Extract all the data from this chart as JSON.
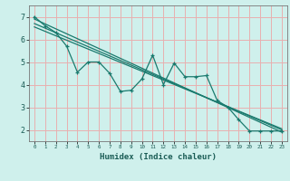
{
  "title": "",
  "xlabel": "Humidex (Indice chaleur)",
  "ylabel": "",
  "bg_color": "#cff0ec",
  "grid_color": "#e8b0b0",
  "line_color": "#1a7a6e",
  "xlim": [
    -0.5,
    23.5
  ],
  "ylim": [
    1.5,
    7.5
  ],
  "xticks": [
    0,
    1,
    2,
    3,
    4,
    5,
    6,
    7,
    8,
    9,
    10,
    11,
    12,
    13,
    14,
    15,
    16,
    17,
    18,
    19,
    20,
    21,
    22,
    23
  ],
  "yticks": [
    2,
    3,
    4,
    5,
    6,
    7
  ],
  "data_line": [
    [
      0,
      7.0
    ],
    [
      1,
      6.6
    ],
    [
      2,
      6.3
    ],
    [
      3,
      5.7
    ],
    [
      4,
      4.55
    ],
    [
      5,
      5.0
    ],
    [
      6,
      5.0
    ],
    [
      7,
      4.5
    ],
    [
      8,
      3.7
    ],
    [
      9,
      3.75
    ],
    [
      10,
      4.25
    ],
    [
      11,
      5.3
    ],
    [
      12,
      4.0
    ],
    [
      13,
      4.95
    ],
    [
      14,
      4.35
    ],
    [
      15,
      4.35
    ],
    [
      16,
      4.4
    ],
    [
      17,
      3.3
    ],
    [
      18,
      3.0
    ],
    [
      19,
      2.45
    ],
    [
      20,
      1.95
    ],
    [
      21,
      1.95
    ],
    [
      22,
      1.95
    ],
    [
      23,
      1.95
    ]
  ],
  "regression_lines": [
    {
      "x": [
        0,
        23
      ],
      "y": [
        6.9,
        1.9
      ]
    },
    {
      "x": [
        0,
        23
      ],
      "y": [
        6.7,
        2.0
      ]
    },
    {
      "x": [
        0,
        23
      ],
      "y": [
        6.55,
        2.05
      ]
    }
  ]
}
